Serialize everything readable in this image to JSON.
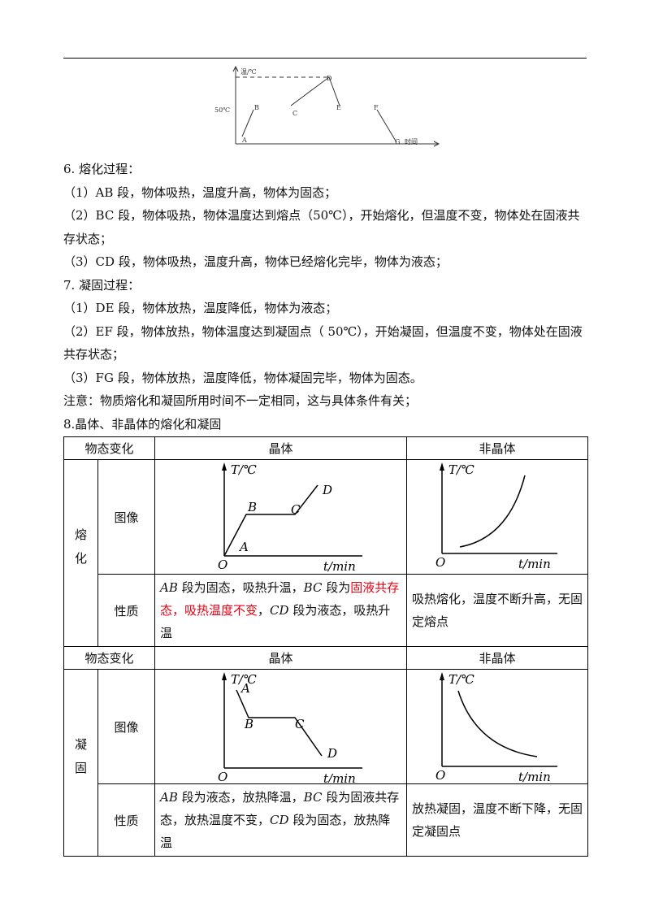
{
  "figure": {
    "y_label": "温/℃",
    "mark_50": "50℃",
    "points": [
      "A",
      "B",
      "C",
      "D",
      "E",
      "F",
      "G"
    ],
    "x_label": "时间"
  },
  "sections": [
    {
      "heading": "6. 熔化过程：",
      "items": [
        "（1）AB 段，物体吸热，温度升高，物体为固态；",
        "（2）BC 段，物体吸热，物体温度达到熔点（50℃），开始熔化，但温度不变，物体处在固液共存状态；",
        "（3）CD 段，物体吸热，温度升高，物体已经熔化完毕，物体为液态；"
      ]
    },
    {
      "heading": "7. 凝固过程：",
      "items": [
        "（1）DE 段，物体放热，温度降低，物体为液态；",
        "（2）EF 段，物体放热，物体温度达到凝固点（ 50℃），开始凝固，但温度不变，物体处在固液共存状态；",
        "（3）FG 段，物体放热，温度降低，物体凝固完毕，物体为固态。"
      ]
    }
  ],
  "note": "注意：物质熔化和凝固所用时间不一定相同，这与具体条件有关；",
  "heading8": "8.晶体、非晶体的熔化和凝固",
  "table": {
    "blocks": [
      {
        "header": [
          "物态变化",
          "晶体",
          "非晶体"
        ],
        "process": "熔化",
        "image_label": "图像",
        "property_label": "性质",
        "crystal_graph": {
          "axis_y": "T/℃",
          "origin": "O",
          "axis_x": "t/min",
          "points": [
            "A",
            "B",
            "C",
            "D"
          ]
        },
        "amorphous_graph": {
          "axis_y": "T/℃",
          "origin": "O",
          "axis_x": "t/min"
        },
        "crystal_property": [
          {
            "text": "AB",
            "italic": true
          },
          {
            "text": " 段为固态，吸热升温，"
          },
          {
            "text": "BC",
            "italic": true
          },
          {
            "text": " 段为"
          },
          {
            "text": "固液共存态，吸热温度不变",
            "color": "#e60012"
          },
          {
            "text": "，"
          },
          {
            "text": "CD",
            "italic": true
          },
          {
            "text": " 段为液态，吸热升温"
          }
        ],
        "amorphous_property": "吸热熔化，温度不断升高，无固定熔点"
      },
      {
        "header": [
          "物态变化",
          "晶体",
          "非晶体"
        ],
        "process": "凝固",
        "image_label": "图像",
        "property_label": "性质",
        "crystal_graph": {
          "axis_y": "T/℃",
          "origin": "O",
          "axis_x": "t/min",
          "points": [
            "A",
            "B",
            "C",
            "D"
          ]
        },
        "amorphous_graph": {
          "axis_y": "T/℃",
          "origin": "O",
          "axis_x": "t/min"
        },
        "crystal_property": [
          {
            "text": "AB",
            "italic": true
          },
          {
            "text": " 段为液态，放热降温，"
          },
          {
            "text": "BC",
            "italic": true
          },
          {
            "text": " 段为固液共存态，放热温度不变，"
          },
          {
            "text": "CD",
            "italic": true
          },
          {
            "text": " 段为固态，放热降温"
          }
        ],
        "amorphous_property": "放热凝固，温度不断下降，无固定凝固点"
      }
    ]
  }
}
